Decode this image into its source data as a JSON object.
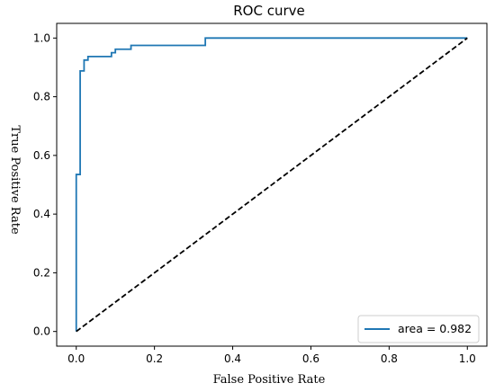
{
  "chart_data": {
    "type": "line",
    "title": "ROC curve",
    "xlabel": "False Positive Rate",
    "ylabel": "True Positive Rate",
    "xlim": [
      -0.05,
      1.05
    ],
    "ylim": [
      -0.05,
      1.05
    ],
    "xticks": [
      "0.0",
      "0.2",
      "0.4",
      "0.6",
      "0.8",
      "1.0"
    ],
    "xtick_values": [
      0.0,
      0.2,
      0.4,
      0.6,
      0.8,
      1.0
    ],
    "yticks": [
      "0.0",
      "0.2",
      "0.4",
      "0.6",
      "0.8",
      "1.0"
    ],
    "ytick_values": [
      0.0,
      0.2,
      0.4,
      0.6,
      0.8,
      1.0
    ],
    "grid": false,
    "legend_position": "lower-right",
    "series": [
      {
        "name": "area = 0.982",
        "color": "#1f77b4",
        "style": "solid",
        "x": [
          0.0,
          0.0,
          0.0,
          0.0,
          0.01,
          0.01,
          0.02,
          0.02,
          0.03,
          0.03,
          0.09,
          0.09,
          0.1,
          0.1,
          0.14,
          0.14,
          0.33,
          0.33,
          1.0
        ],
        "y": [
          0.0,
          0.005,
          0.005,
          0.535,
          0.535,
          0.888,
          0.888,
          0.925,
          0.925,
          0.937,
          0.937,
          0.95,
          0.95,
          0.962,
          0.962,
          0.975,
          0.975,
          1.0,
          1.0
        ]
      },
      {
        "name": "",
        "color": "#000000",
        "style": "dashed",
        "x": [
          0.0,
          1.0
        ],
        "y": [
          0.0,
          1.0
        ]
      }
    ]
  }
}
